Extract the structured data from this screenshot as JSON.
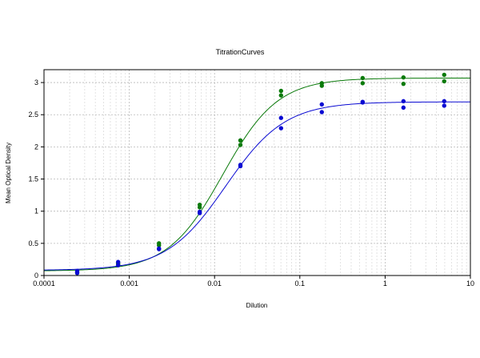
{
  "chart_data": {
    "type": "scatter",
    "title": "TitrationCurves",
    "xlabel": "Dilution",
    "ylabel": "Mean Optical Density",
    "x_scale": "log",
    "xlim": [
      0.0001,
      10
    ],
    "ylim": [
      0,
      3.2
    ],
    "grid": true,
    "legend": "none",
    "x_ticks": [
      {
        "value": 0.0001,
        "label": "0.0001"
      },
      {
        "value": 0.001,
        "label": "0.001"
      },
      {
        "value": 0.01,
        "label": "0.01"
      },
      {
        "value": 0.1,
        "label": "0.1"
      },
      {
        "value": 1,
        "label": "1"
      },
      {
        "value": 10,
        "label": "10"
      }
    ],
    "y_ticks": [
      {
        "value": 0,
        "label": "0"
      },
      {
        "value": 0.5,
        "label": "0.5"
      },
      {
        "value": 1,
        "label": "1"
      },
      {
        "value": 1.5,
        "label": "1.5"
      },
      {
        "value": 2,
        "label": "2"
      },
      {
        "value": 2.5,
        "label": "2.5"
      },
      {
        "value": 3,
        "label": "3"
      }
    ],
    "series": [
      {
        "color": "#0a7a0a",
        "points": [
          {
            "x": 0.000245,
            "y": 0.06
          },
          {
            "x": 0.000245,
            "y": 0.04
          },
          {
            "x": 0.00074,
            "y": 0.19
          },
          {
            "x": 0.00074,
            "y": 0.17
          },
          {
            "x": 0.00223,
            "y": 0.5
          },
          {
            "x": 0.00223,
            "y": 0.47
          },
          {
            "x": 0.0067,
            "y": 1.1
          },
          {
            "x": 0.0067,
            "y": 1.06
          },
          {
            "x": 0.0201,
            "y": 2.1
          },
          {
            "x": 0.0201,
            "y": 2.03
          },
          {
            "x": 0.0602,
            "y": 2.87
          },
          {
            "x": 0.0602,
            "y": 2.8
          },
          {
            "x": 0.181,
            "y": 2.99
          },
          {
            "x": 0.181,
            "y": 2.95
          },
          {
            "x": 0.545,
            "y": 3.07
          },
          {
            "x": 0.545,
            "y": 2.99
          },
          {
            "x": 1.64,
            "y": 3.08
          },
          {
            "x": 1.64,
            "y": 2.98
          },
          {
            "x": 4.93,
            "y": 3.12
          },
          {
            "x": 4.93,
            "y": 3.02
          }
        ],
        "curve": {
          "bottom": 0.07,
          "top": 3.07,
          "ec50": 0.0125,
          "hill": 1.35
        }
      },
      {
        "color": "#0a0ad2",
        "points": [
          {
            "x": 0.000245,
            "y": 0.07
          },
          {
            "x": 0.000245,
            "y": 0.04
          },
          {
            "x": 0.00074,
            "y": 0.21
          },
          {
            "x": 0.00074,
            "y": 0.16
          },
          {
            "x": 0.00223,
            "y": 0.42
          },
          {
            "x": 0.00223,
            "y": 0.41
          },
          {
            "x": 0.0067,
            "y": 0.99
          },
          {
            "x": 0.0067,
            "y": 0.97
          },
          {
            "x": 0.0201,
            "y": 1.72
          },
          {
            "x": 0.0201,
            "y": 1.7
          },
          {
            "x": 0.0602,
            "y": 2.45
          },
          {
            "x": 0.0602,
            "y": 2.29
          },
          {
            "x": 0.181,
            "y": 2.66
          },
          {
            "x": 0.181,
            "y": 2.54
          },
          {
            "x": 0.545,
            "y": 2.7
          },
          {
            "x": 0.545,
            "y": 2.69
          },
          {
            "x": 1.64,
            "y": 2.71
          },
          {
            "x": 1.64,
            "y": 2.61
          },
          {
            "x": 4.93,
            "y": 2.71
          },
          {
            "x": 4.93,
            "y": 2.64
          }
        ],
        "curve": {
          "bottom": 0.08,
          "top": 2.7,
          "ec50": 0.0135,
          "hill": 1.25
        }
      }
    ]
  }
}
